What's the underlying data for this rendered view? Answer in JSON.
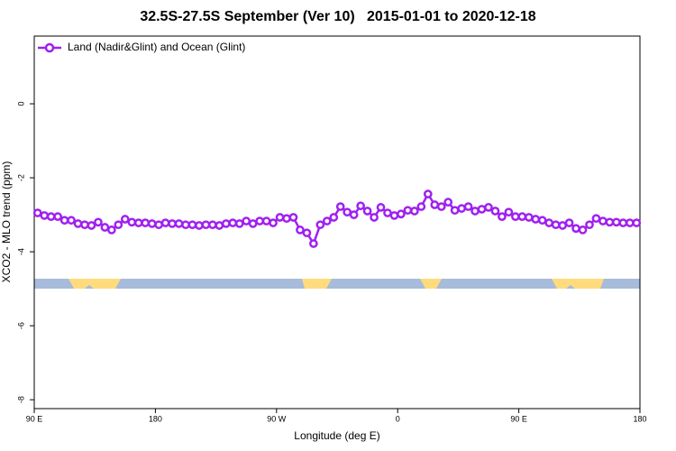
{
  "chart_data": {
    "type": "line",
    "title": "32.5S-27.5S September (Ver 10)   2015-01-01 to 2020-12-18",
    "x_label": "Longitude (deg E)",
    "y_label": "XCO2 - MLO trend (ppm)",
    "xlim": [
      90,
      540
    ],
    "xticks": [
      {
        "value": 90,
        "label": "90 E"
      },
      180,
      {
        "value": 270,
        "label": "90 W"
      },
      {
        "value": 360,
        "label": "0"
      },
      {
        "value": 450,
        "label": "90 E"
      },
      {
        "value": 540,
        "label": "180"
      }
    ],
    "ylim": [
      -8.24,
      1.83
    ],
    "yticks": [
      0,
      -2,
      -4,
      -6,
      -8
    ],
    "legend": "top-left",
    "x": [
      92.5,
      97.5,
      102.5,
      107.5,
      112.5,
      117.5,
      122.5,
      127.5,
      132.5,
      137.5,
      142.5,
      147.5,
      152.5,
      157.5,
      162.5,
      167.5,
      172.5,
      177.5,
      182.5,
      187.5,
      192.5,
      197.5,
      202.5,
      207.5,
      212.5,
      217.5,
      222.5,
      227.5,
      232.5,
      237.5,
      242.5,
      247.5,
      252.5,
      257.5,
      262.5,
      267.5,
      272.5,
      277.5,
      282.5,
      287.5,
      292.5,
      297.5,
      302.5,
      307.5,
      312.5,
      317.5,
      322.5,
      327.5,
      332.5,
      337.5,
      342.5,
      347.5,
      352.5,
      357.5,
      362.5,
      367.5,
      372.5,
      377.5,
      382.5,
      387.5,
      392.5,
      397.5,
      402.5,
      407.5,
      412.5,
      417.5,
      422.5,
      427.5,
      432.5,
      437.5,
      442.5,
      447.5,
      452.5,
      457.5,
      462.5,
      467.5,
      472.5,
      477.5,
      482.5,
      487.5,
      492.5,
      497.5,
      502.5,
      507.5,
      512.5,
      517.5,
      522.5,
      527.5,
      532.5,
      537.5
    ],
    "series": [
      {
        "name": "Land (Nadir&Glint) and Ocean (Glint)",
        "color": "#a020f0",
        "values": [
          -2.95,
          -3.02,
          -3.05,
          -3.05,
          -3.15,
          -3.15,
          -3.24,
          -3.27,
          -3.29,
          -3.2,
          -3.34,
          -3.41,
          -3.27,
          -3.12,
          -3.2,
          -3.22,
          -3.22,
          -3.24,
          -3.27,
          -3.22,
          -3.24,
          -3.24,
          -3.27,
          -3.27,
          -3.29,
          -3.27,
          -3.27,
          -3.29,
          -3.24,
          -3.22,
          -3.24,
          -3.17,
          -3.24,
          -3.17,
          -3.17,
          -3.22,
          -3.07,
          -3.1,
          -3.07,
          -3.41,
          -3.49,
          -3.78,
          -3.27,
          -3.17,
          -3.07,
          -2.78,
          -2.93,
          -3.0,
          -2.76,
          -2.9,
          -3.07,
          -2.8,
          -2.95,
          -3.02,
          -2.98,
          -2.88,
          -2.9,
          -2.78,
          -2.44,
          -2.73,
          -2.78,
          -2.66,
          -2.88,
          -2.83,
          -2.78,
          -2.9,
          -2.85,
          -2.8,
          -2.9,
          -3.05,
          -2.93,
          -3.05,
          -3.05,
          -3.07,
          -3.12,
          -3.15,
          -3.22,
          -3.27,
          -3.29,
          -3.22,
          -3.37,
          -3.41,
          -3.27,
          -3.1,
          -3.17,
          -3.2,
          -3.2,
          -3.22,
          -3.22,
          -3.22
        ]
      }
    ]
  }
}
